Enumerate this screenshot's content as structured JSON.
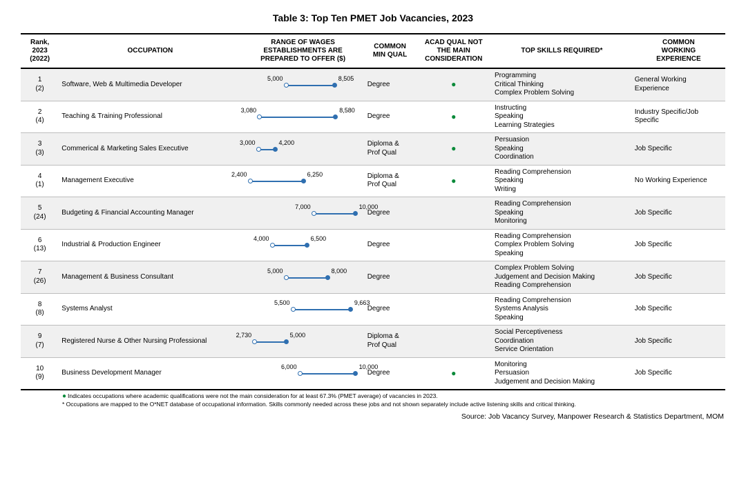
{
  "title": "Table 3: Top Ten PMET Job Vacancies, 2023",
  "headers": {
    "rank": "Rank,\n2023\n(2022)",
    "occupation": "OCCUPATION",
    "wage": "RANGE OF WAGES\nESTABLISHMENTS ARE\nPREPARED TO OFFER ($)",
    "minq": "COMMON\nMIN QUAL",
    "acad": "ACAD QUAL NOT\nTHE MAIN\nCONSIDERATION",
    "skills": "TOP SKILLS REQUIRED*",
    "exp": "COMMON\nWORKING\nEXPERIENCE"
  },
  "wage_axis": {
    "min": 2000,
    "max": 10500
  },
  "dot_color": "#2f6fb0",
  "acad_dot_color": "#0a8a3a",
  "rows": [
    {
      "rank2023": "1",
      "rank2022": "(2)",
      "occupation": "Software, Web & Multimedia Developer",
      "wage_lo": 5000,
      "wage_hi": 8505,
      "wage_lo_label": "5,000",
      "wage_hi_label": "8,505",
      "min_qual": "Degree",
      "acad_not_main": true,
      "skills": "Programming\nCritical Thinking\nComplex Problem Solving",
      "experience": "General Working Experience"
    },
    {
      "rank2023": "2",
      "rank2022": "(4)",
      "occupation": "Teaching & Training Professional",
      "wage_lo": 3080,
      "wage_hi": 8580,
      "wage_lo_label": "3,080",
      "wage_hi_label": "8,580",
      "min_qual": "Degree",
      "acad_not_main": true,
      "skills": "Instructing\nSpeaking\nLearning Strategies",
      "experience": "Industry Specific/Job Specific"
    },
    {
      "rank2023": "3",
      "rank2022": "(3)",
      "occupation": "Commerical & Marketing Sales Executive",
      "wage_lo": 3000,
      "wage_hi": 4200,
      "wage_lo_label": "3,000",
      "wage_hi_label": "4,200",
      "min_qual": "Diploma & Prof Qual",
      "acad_not_main": true,
      "skills": "Persuasion\nSpeaking\nCoordination",
      "experience": "Job Specific"
    },
    {
      "rank2023": "4",
      "rank2022": "(1)",
      "occupation": "Management Executive",
      "wage_lo": 2400,
      "wage_hi": 6250,
      "wage_lo_label": "2,400",
      "wage_hi_label": "6,250",
      "min_qual": "Diploma & Prof Qual",
      "acad_not_main": true,
      "skills": "Reading Comprehension\nSpeaking\nWriting",
      "experience": "No Working Experience"
    },
    {
      "rank2023": "5",
      "rank2022": "(24)",
      "occupation": "Budgeting & Financial Accounting Manager",
      "wage_lo": 7000,
      "wage_hi": 10000,
      "wage_lo_label": "7,000",
      "wage_hi_label": "10,000",
      "min_qual": "Degree",
      "acad_not_main": false,
      "skills": "Reading Comprehension\nSpeaking\nMonitoring",
      "experience": "Job Specific"
    },
    {
      "rank2023": "6",
      "rank2022": "(13)",
      "occupation": "Industrial & Production Engineer",
      "wage_lo": 4000,
      "wage_hi": 6500,
      "wage_lo_label": "4,000",
      "wage_hi_label": "6,500",
      "min_qual": "Degree",
      "acad_not_main": false,
      "skills": "Reading Comprehension\nComplex Problem Solving\nSpeaking",
      "experience": "Job Specific"
    },
    {
      "rank2023": "7",
      "rank2022": "(26)",
      "occupation": "Management & Business Consultant",
      "wage_lo": 5000,
      "wage_hi": 8000,
      "wage_lo_label": "5,000",
      "wage_hi_label": "8,000",
      "min_qual": "Degree",
      "acad_not_main": false,
      "skills": "Complex Problem Solving\nJudgement and Decision Making\nReading Comprehension",
      "experience": "Job Specific"
    },
    {
      "rank2023": "8",
      "rank2022": "(8)",
      "occupation": "Systems Analyst",
      "wage_lo": 5500,
      "wage_hi": 9663,
      "wage_lo_label": "5,500",
      "wage_hi_label": "9,663",
      "min_qual": "Degree",
      "acad_not_main": false,
      "skills": "Reading Comprehension\nSystems Analysis\nSpeaking",
      "experience": "Job Specific"
    },
    {
      "rank2023": "9",
      "rank2022": "(7)",
      "occupation": "Registered Nurse & Other Nursing Professional",
      "wage_lo": 2730,
      "wage_hi": 5000,
      "wage_lo_label": "2,730",
      "wage_hi_label": "5,000",
      "min_qual": "Diploma & Prof Qual",
      "acad_not_main": false,
      "skills": "Social Perceptiveness\nCoordination\nService Orientation",
      "experience": "Job Specific"
    },
    {
      "rank2023": "10",
      "rank2022": "(9)",
      "occupation": "Business Development Manager",
      "wage_lo": 6000,
      "wage_hi": 10000,
      "wage_lo_label": "6,000",
      "wage_hi_label": "10,000",
      "min_qual": "Degree",
      "acad_not_main": true,
      "skills": "Monitoring\nPersuasion\nJudgement and Decision Making",
      "experience": "Job Specific"
    }
  ],
  "footnotes": {
    "line1": "Indicates occupations where academic qualifications were not the main consideration for at least 67.3% (PMET average) of vacancies in 2023.",
    "line2": "* Occupations are mapped to the O*NET database of occupational information. Skills commonly needed across these jobs and not shown separately include active listening skills and critical thinking."
  },
  "source": "Source: Job Vacancy Survey, Manpower Research & Statistics Department, MOM"
}
